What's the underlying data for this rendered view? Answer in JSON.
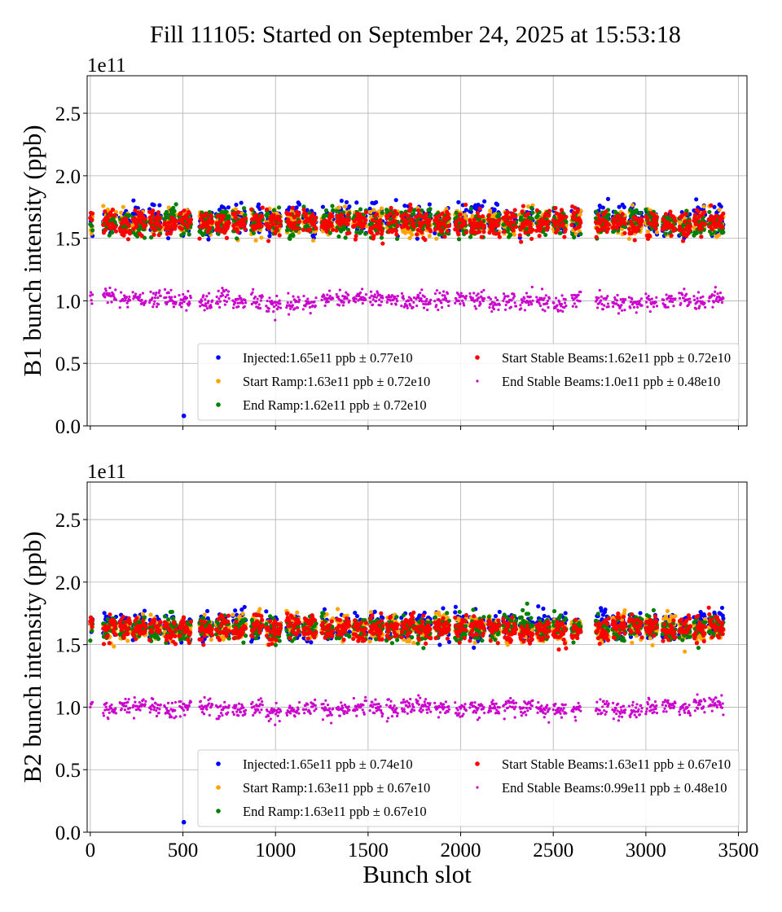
{
  "title": "Fill 11105: Started on September 24, 2025 at 15:53:18",
  "chart_data": [
    {
      "type": "scatter",
      "ylabel": "B1 bunch intensity (ppb)",
      "xlabel": "",
      "offset_label": "1e11",
      "xlim": [
        -17,
        3546
      ],
      "ylim": [
        0,
        2.8
      ],
      "xticks": [
        0,
        500,
        1000,
        1500,
        2000,
        2500,
        3000,
        3500
      ],
      "yticks": [
        "0.0",
        "0.5",
        "1.0",
        "1.5",
        "2.0",
        "2.5"
      ],
      "grid": true,
      "legend_position": "lower-right",
      "series": [
        {
          "name": "Injected:1.65e11 ppb ± 0.77e10",
          "color": "#0000ff",
          "mean": 1.65,
          "std": 0.077
        },
        {
          "name": "Start Ramp:1.63e11 ppb ± 0.72e10",
          "color": "#ffa500",
          "mean": 1.63,
          "std": 0.072
        },
        {
          "name": "End Ramp:1.62e11 ppb ± 0.72e10",
          "color": "#008000",
          "mean": 1.62,
          "std": 0.072
        },
        {
          "name": "Start Stable Beams:1.62e11 ppb ± 0.72e10",
          "color": "#ff0000",
          "mean": 1.62,
          "std": 0.072
        },
        {
          "name": "End Stable Beams:1.0e11 ppb ± 0.48e10",
          "color": "#cc00cc",
          "mean": 1.0,
          "std": 0.048
        }
      ],
      "outliers": [
        {
          "series": 0,
          "x": 505,
          "y": 0.08
        }
      ]
    },
    {
      "type": "scatter",
      "ylabel": "B2 bunch intensity (ppb)",
      "xlabel": "Bunch slot",
      "offset_label": "1e11",
      "xlim": [
        -17,
        3546
      ],
      "ylim": [
        0,
        2.8
      ],
      "xticks": [
        0,
        500,
        1000,
        1500,
        2000,
        2500,
        3000,
        3500
      ],
      "yticks": [
        "0.0",
        "0.5",
        "1.0",
        "1.5",
        "2.0",
        "2.5"
      ],
      "grid": true,
      "legend_position": "lower-right",
      "series": [
        {
          "name": "Injected:1.65e11 ppb ± 0.74e10",
          "color": "#0000ff",
          "mean": 1.65,
          "std": 0.074
        },
        {
          "name": "Start Ramp:1.63e11 ppb ± 0.67e10",
          "color": "#ffa500",
          "mean": 1.63,
          "std": 0.067
        },
        {
          "name": "End Ramp:1.63e11 ppb ± 0.67e10",
          "color": "#008000",
          "mean": 1.63,
          "std": 0.067
        },
        {
          "name": "Start Stable Beams:1.63e11 ppb ± 0.67e10",
          "color": "#ff0000",
          "mean": 1.63,
          "std": 0.067
        },
        {
          "name": "End Stable Beams:0.99e11 ppb ± 0.48e10",
          "color": "#cc00cc",
          "mean": 0.99,
          "std": 0.048
        }
      ],
      "outliers": [
        {
          "series": 0,
          "x": 505,
          "y": 0.08
        }
      ]
    }
  ],
  "bunch_trains": [
    [
      0,
      12
    ],
    [
      70,
      140
    ],
    [
      160,
      215
    ],
    [
      230,
      300
    ],
    [
      320,
      380
    ],
    [
      400,
      465
    ],
    [
      480,
      545
    ],
    [
      590,
      660
    ],
    [
      680,
      750
    ],
    [
      770,
      840
    ],
    [
      870,
      930
    ],
    [
      950,
      1030
    ],
    [
      1060,
      1130
    ],
    [
      1150,
      1220
    ],
    [
      1250,
      1310
    ],
    [
      1330,
      1400
    ],
    [
      1420,
      1490
    ],
    [
      1510,
      1580
    ],
    [
      1600,
      1660
    ],
    [
      1680,
      1750
    ],
    [
      1760,
      1840
    ],
    [
      1860,
      1940
    ],
    [
      1970,
      2030
    ],
    [
      2050,
      2130
    ],
    [
      2150,
      2210
    ],
    [
      2230,
      2300
    ],
    [
      2320,
      2390
    ],
    [
      2410,
      2480
    ],
    [
      2500,
      2570
    ],
    [
      2600,
      2650
    ],
    [
      2730,
      2800
    ],
    [
      2820,
      2890
    ],
    [
      2910,
      2980
    ],
    [
      3000,
      3060
    ],
    [
      3090,
      3160
    ],
    [
      3180,
      3240
    ],
    [
      3260,
      3320
    ],
    [
      3340,
      3420
    ]
  ]
}
